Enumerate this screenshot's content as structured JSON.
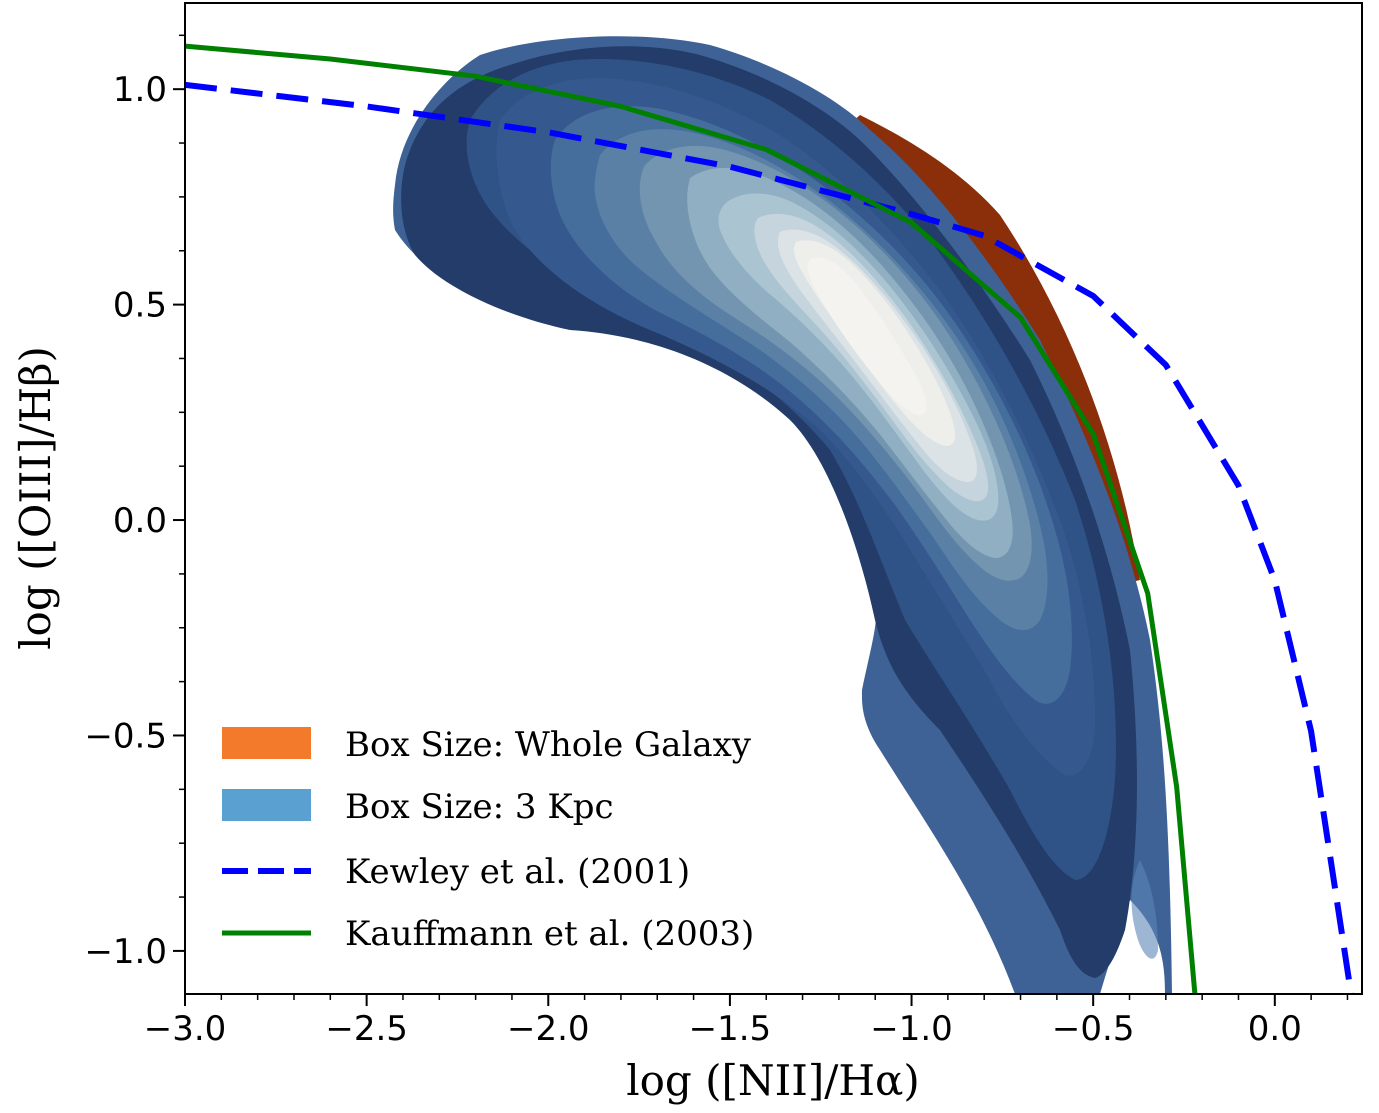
{
  "chart_data": {
    "type": "contour",
    "xlabel": "log ([NII]/Hα)",
    "ylabel": "log ([OIII]/Hβ)",
    "xlim": [
      -3.0,
      0.24
    ],
    "ylim": [
      -1.1,
      1.2
    ],
    "xticks": [
      {
        "value": -3.0,
        "label": "−3.0"
      },
      {
        "value": -2.5,
        "label": "−2.5"
      },
      {
        "value": -2.0,
        "label": "−2.0"
      },
      {
        "value": -1.5,
        "label": "−1.5"
      },
      {
        "value": -1.0,
        "label": "−1.0"
      },
      {
        "value": -0.5,
        "label": "−0.5"
      },
      {
        "value": 0.0,
        "label": "0.0"
      }
    ],
    "yticks": [
      {
        "value": -1.0,
        "label": "−1.0"
      },
      {
        "value": -0.5,
        "label": "−0.5"
      },
      {
        "value": 0.0,
        "label": "0.0"
      },
      {
        "value": 0.5,
        "label": "0.5"
      },
      {
        "value": 1.0,
        "label": "1.0"
      }
    ],
    "series": [
      {
        "name": "Box Size: Whole Galaxy",
        "kind": "density-contour",
        "color": "#f47a2b"
      },
      {
        "name": "Box Size: 3 Kpc",
        "kind": "density-contour",
        "color": "#5aa0d0"
      },
      {
        "name": "Kewley et al. (2001)",
        "kind": "line",
        "style": "dashed",
        "color": "#0000ff",
        "x": [
          -3.0,
          -2.5,
          -2.0,
          -1.5,
          -1.0,
          -0.8,
          -0.5,
          -0.3,
          -0.1,
          0.0,
          0.1,
          0.21
        ],
        "y": [
          1.01,
          0.96,
          0.9,
          0.82,
          0.71,
          0.66,
          0.52,
          0.36,
          0.08,
          -0.14,
          -0.49,
          -1.1
        ]
      },
      {
        "name": "Kauffmann et al. (2003)",
        "kind": "line",
        "style": "solid",
        "color": "#008000",
        "x": [
          -3.0,
          -2.6,
          -2.2,
          -1.8,
          -1.4,
          -1.0,
          -0.7,
          -0.5,
          -0.35,
          -0.27,
          -0.22
        ],
        "y": [
          1.1,
          1.07,
          1.03,
          0.96,
          0.86,
          0.69,
          0.47,
          0.2,
          -0.17,
          -0.62,
          -1.1
        ]
      }
    ],
    "legend": {
      "position": "lower-left",
      "entries": [
        {
          "label": "Box Size: Whole Galaxy",
          "swatch": "patch",
          "color": "#f47a2b"
        },
        {
          "label": "Box Size: 3 Kpc",
          "swatch": "patch",
          "color": "#5aa0d0"
        },
        {
          "label": "Kewley et al. (2001)",
          "swatch": "dashed",
          "color": "#0000ff"
        },
        {
          "label": "Kauffmann et al. (2003)",
          "swatch": "solid",
          "color": "#008000"
        }
      ]
    },
    "grid": false,
    "colors": {
      "whole_galaxy_fill": "#8a2f0a",
      "contour_outer": "#3f6296",
      "contour_dark": "#233c69",
      "contour_mid": "#5a86a6",
      "contour_light": "#a9c3d1",
      "contour_core": "#f3f2ee"
    }
  }
}
